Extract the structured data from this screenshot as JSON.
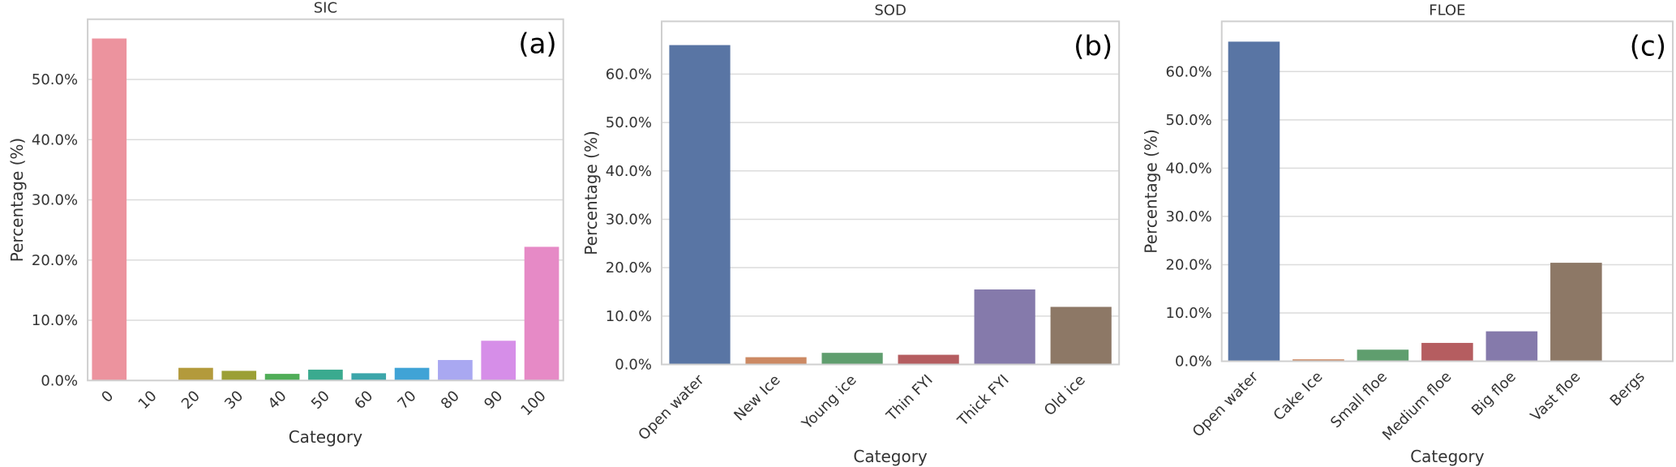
{
  "chart_data": [
    {
      "type": "bar",
      "title": "SIC",
      "annotation": "(a)",
      "xlabel": "Category",
      "ylabel": "Percentage (%)",
      "categories": [
        "0",
        "10",
        "20",
        "30",
        "40",
        "50",
        "60",
        "70",
        "80",
        "90",
        "100"
      ],
      "values": [
        56.8,
        0.1,
        2.1,
        1.6,
        1.1,
        1.8,
        1.2,
        2.1,
        3.4,
        6.6,
        22.2
      ],
      "colors": [
        "#ec939e",
        "#d8a07a",
        "#b39a3c",
        "#9b9f35",
        "#4fad57",
        "#3aaa8f",
        "#3ca6aa",
        "#40a3d6",
        "#a9a8f1",
        "#d68ee8",
        "#e68ac6"
      ],
      "ylim": [
        0,
        60
      ],
      "yticks": [
        {
          "value": 0,
          "label": "0.0%"
        },
        {
          "value": 10,
          "label": "10.0%"
        },
        {
          "value": 20,
          "label": "20.0%"
        },
        {
          "value": 30,
          "label": "30.0%"
        },
        {
          "value": 40,
          "label": "40.0%"
        },
        {
          "value": 50,
          "label": "50.0%"
        }
      ],
      "grid": true
    },
    {
      "type": "bar",
      "title": "SOD",
      "annotation": "(b)",
      "xlabel": "Category",
      "ylabel": "Percentage (%)",
      "categories": [
        "Open water",
        "New Ice",
        "Young ice",
        "Thin FYI",
        "Thick FYI",
        "Old ice"
      ],
      "values": [
        66.0,
        1.5,
        2.4,
        2.0,
        15.5,
        11.9
      ],
      "colors": [
        "#5975a4",
        "#cc8963",
        "#5f9e6e",
        "#b55d60",
        "#857aab",
        "#8d7866"
      ],
      "ylim": [
        0,
        70.9
      ],
      "yticks": [
        {
          "value": 0,
          "label": "0.0%"
        },
        {
          "value": 10,
          "label": "10.0%"
        },
        {
          "value": 20,
          "label": "20.0%"
        },
        {
          "value": 30,
          "label": "30.0%"
        },
        {
          "value": 40,
          "label": "40.0%"
        },
        {
          "value": 50,
          "label": "50.0%"
        },
        {
          "value": 60,
          "label": "60.0%"
        }
      ],
      "grid": true
    },
    {
      "type": "bar",
      "title": "FLOE",
      "annotation": "(c)",
      "xlabel": "Category",
      "ylabel": "Percentage (%)",
      "categories": [
        "Open water",
        "Cake Ice",
        "Small floe",
        "Medium floe",
        "Big floe",
        "Vast floe",
        "Bergs"
      ],
      "values": [
        66.2,
        0.4,
        2.4,
        3.8,
        6.2,
        20.4,
        0
      ],
      "colors": [
        "#5975a4",
        "#cc8963",
        "#5f9e6e",
        "#b55d60",
        "#857aab",
        "#8d7866",
        "#d095bf"
      ],
      "ylim": [
        0,
        70.4
      ],
      "yticks": [
        {
          "value": 0,
          "label": "0.0%"
        },
        {
          "value": 10,
          "label": "10.0%"
        },
        {
          "value": 20,
          "label": "20.0%"
        },
        {
          "value": 30,
          "label": "30.0%"
        },
        {
          "value": 40,
          "label": "40.0%"
        },
        {
          "value": 50,
          "label": "50.0%"
        },
        {
          "value": 60,
          "label": "60.0%"
        }
      ],
      "grid": true
    }
  ]
}
